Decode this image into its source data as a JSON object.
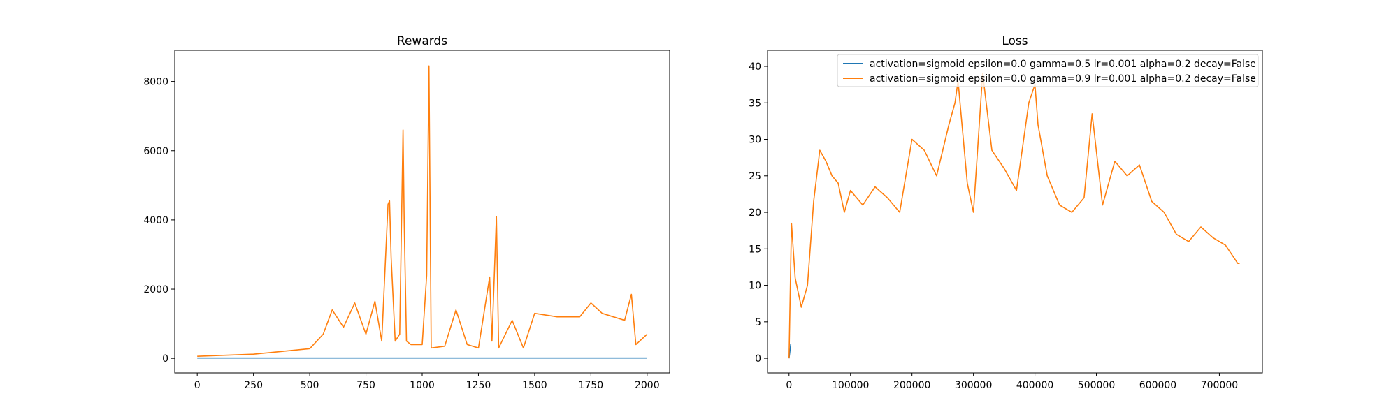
{
  "chart_data": [
    {
      "type": "line",
      "title": "Rewards",
      "xlabel": "",
      "ylabel": "",
      "xlim": [
        -100,
        2100
      ],
      "ylim": [
        -420,
        8900
      ],
      "x_ticks": [
        0,
        250,
        500,
        750,
        1000,
        1250,
        1500,
        1750,
        2000
      ],
      "y_ticks": [
        0,
        2000,
        4000,
        6000,
        8000
      ],
      "x_tick_labels": [
        "0",
        "250",
        "500",
        "750",
        "1000",
        "1250",
        "1500",
        "1750",
        "2000"
      ],
      "y_tick_labels": [
        "0",
        "2000",
        "4000",
        "6000",
        "8000"
      ],
      "grid": false,
      "series": [
        {
          "name": "activation=sigmoid epsilon=0.0 gamma=0.5 lr=0.001 alpha=0.2 decay=False",
          "color": "#1f77b4",
          "x": [
            0,
            2000
          ],
          "values": [
            10,
            10
          ]
        },
        {
          "name": "activation=sigmoid epsilon=0.0 gamma=0.9 lr=0.001 alpha=0.2 decay=False",
          "color": "#ff7f0e",
          "x": [
            0,
            250,
            500,
            560,
            600,
            650,
            700,
            750,
            790,
            820,
            848,
            855,
            862,
            880,
            900,
            915,
            920,
            930,
            950,
            1000,
            1020,
            1030,
            1040,
            1100,
            1150,
            1200,
            1250,
            1300,
            1310,
            1330,
            1340,
            1400,
            1450,
            1500,
            1600,
            1700,
            1750,
            1800,
            1850,
            1900,
            1930,
            1950,
            2000
          ],
          "values": [
            60,
            120,
            280,
            700,
            1400,
            900,
            1600,
            700,
            1650,
            500,
            4450,
            4550,
            2900,
            500,
            700,
            6600,
            3900,
            500,
            400,
            400,
            2400,
            8450,
            300,
            350,
            1400,
            400,
            300,
            2350,
            500,
            4100,
            300,
            1100,
            300,
            1300,
            1200,
            1200,
            1600,
            1300,
            1200,
            1100,
            1850,
            400,
            700
          ]
        }
      ]
    },
    {
      "type": "line",
      "title": "Loss",
      "xlabel": "",
      "ylabel": "",
      "xlim": [
        -35000,
        770000
      ],
      "ylim": [
        -2,
        42.2
      ],
      "x_ticks": [
        0,
        100000,
        200000,
        300000,
        400000,
        500000,
        600000,
        700000
      ],
      "y_ticks": [
        0,
        5,
        10,
        15,
        20,
        25,
        30,
        35,
        40
      ],
      "x_tick_labels": [
        "0",
        "100000",
        "200000",
        "300000",
        "400000",
        "500000",
        "600000",
        "700000"
      ],
      "y_tick_labels": [
        "0",
        "5",
        "10",
        "15",
        "20",
        "25",
        "30",
        "35",
        "40"
      ],
      "grid": false,
      "legend": {
        "location": "upper right",
        "entries": [
          {
            "label": "activation=sigmoid epsilon=0.0 gamma=0.5 lr=0.001 alpha=0.2 decay=False",
            "color": "#1f77b4"
          },
          {
            "label": "activation=sigmoid epsilon=0.0 gamma=0.9 lr=0.001 alpha=0.2 decay=False",
            "color": "#ff7f0e"
          }
        ]
      },
      "series": [
        {
          "name": "activation=sigmoid epsilon=0.0 gamma=0.5 lr=0.001 alpha=0.2 decay=False",
          "color": "#1f77b4",
          "x": [
            0,
            3000
          ],
          "values": [
            0,
            2
          ]
        },
        {
          "name": "activation=sigmoid epsilon=0.0 gamma=0.9 lr=0.001 alpha=0.2 decay=False",
          "color": "#ff7f0e",
          "x": [
            0,
            4000,
            10000,
            20000,
            30000,
            40000,
            50000,
            60000,
            70000,
            80000,
            90000,
            100000,
            120000,
            140000,
            160000,
            180000,
            200000,
            220000,
            240000,
            260000,
            270000,
            275000,
            290000,
            300000,
            315000,
            330000,
            350000,
            370000,
            390000,
            400000,
            405000,
            420000,
            440000,
            460000,
            480000,
            493000,
            510000,
            530000,
            550000,
            570000,
            590000,
            610000,
            630000,
            650000,
            670000,
            690000,
            710000,
            730000,
            733000
          ],
          "values": [
            0,
            18.5,
            11,
            7,
            10,
            21.5,
            28.5,
            27,
            25,
            24,
            20,
            23,
            21,
            23.5,
            22,
            20,
            30,
            28.5,
            25,
            32,
            35,
            38,
            24,
            20,
            39,
            28.5,
            26,
            23,
            35,
            37.5,
            32,
            25,
            21,
            20,
            22,
            33.5,
            21,
            27,
            25,
            26.5,
            21.5,
            20,
            17,
            16,
            18,
            16.5,
            15.5,
            13,
            13
          ]
        }
      ]
    }
  ]
}
